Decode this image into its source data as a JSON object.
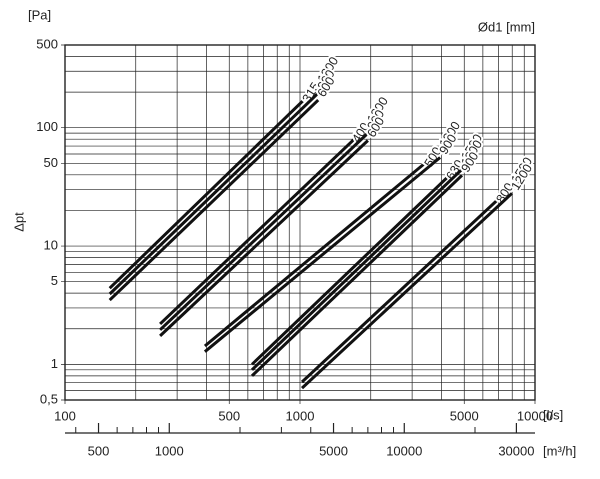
{
  "chart_data": {
    "type": "line",
    "y_unit": "[Pa]",
    "y_label": "Δpt",
    "legend_title": "Ød1 [mm]",
    "x_unit": "[l/s]",
    "x2_unit": "[m³/h]",
    "log_x": true,
    "log_y": true,
    "grid": true,
    "color": "#111111",
    "xlim": [
      100,
      10000
    ],
    "xticks": [
      100,
      500,
      1000,
      5000,
      10000
    ],
    "xminor": [
      200,
      300,
      400,
      600,
      700,
      800,
      900,
      2000,
      3000,
      4000,
      6000,
      7000,
      8000,
      9000
    ],
    "ylim": [
      0.5,
      500
    ],
    "yticks": [
      {
        "value": 0.5,
        "label": "0,5"
      },
      1,
      5,
      10,
      50,
      100,
      500
    ],
    "yminor": [
      0.6,
      0.7,
      0.8,
      0.9,
      2,
      3,
      4,
      6,
      7,
      8,
      9,
      20,
      30,
      40,
      60,
      70,
      80,
      90,
      200,
      300,
      400
    ],
    "x2lim": [
      360,
      36000
    ],
    "x2ticks": [
      500,
      1000,
      5000,
      10000,
      30000
    ],
    "x2minor": [
      400,
      600,
      700,
      800,
      900,
      2000,
      3000,
      4000,
      6000,
      7000,
      8000,
      9000,
      20000
    ],
    "groups": [
      {
        "label": "315",
        "series": [
          {
            "name": "1200",
            "x": [
              155,
              1195
            ],
            "values": [
              4.4,
              225
            ]
          },
          {
            "name": "900",
            "x": [
              155,
              1195
            ],
            "values": [
              3.93,
              196
            ]
          },
          {
            "name": "600",
            "x": [
              155,
              1195
            ],
            "values": [
              3.49,
              171
            ]
          }
        ]
      },
      {
        "label": "400",
        "series": [
          {
            "name": "1200",
            "x": [
              254,
              1945
            ],
            "values": [
              2.2,
              103
            ]
          },
          {
            "name": "900",
            "x": [
              254,
              1945
            ],
            "values": [
              1.96,
              90
            ]
          },
          {
            "name": "600",
            "x": [
              254,
              1945
            ],
            "values": [
              1.74,
              78
            ]
          }
        ]
      },
      {
        "label": "500",
        "series": [
          {
            "name": "1200",
            "x": [
              394,
              3945
            ],
            "values": [
              1.43,
              64
            ]
          },
          {
            "name": "900",
            "x": [
              394,
              3945
            ],
            "values": [
              1.28,
              56
            ]
          }
        ]
      },
      {
        "label": "630",
        "series": [
          {
            "name": "1500",
            "x": [
              625,
              4890
            ],
            "values": [
              1.0,
              50
            ]
          },
          {
            "name": "1200",
            "x": [
              625,
              4890
            ],
            "values": [
              0.9,
              44.5
            ]
          },
          {
            "name": "900",
            "x": [
              625,
              4890
            ],
            "values": [
              0.8,
              39.6
            ]
          }
        ]
      },
      {
        "label": "800",
        "series": [
          {
            "name": "1500",
            "x": [
              1020,
              7980
            ],
            "values": [
              0.71,
              31.9
            ]
          },
          {
            "name": "1200",
            "x": [
              1020,
              7980
            ],
            "values": [
              0.63,
              27.9
            ]
          }
        ]
      }
    ]
  }
}
